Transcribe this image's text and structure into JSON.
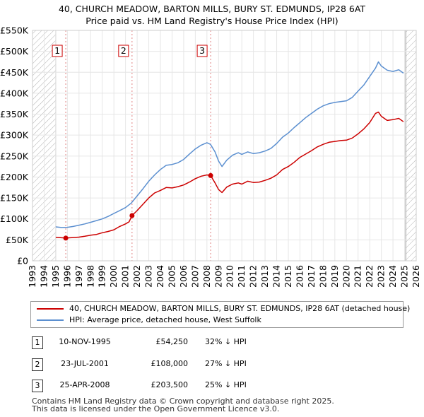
{
  "title_line1": "40, CHURCH MEADOW, BARTON MILLS, BURY ST. EDMUNDS, IP28 6AT",
  "title_line2": "Price paid vs. HM Land Registry's House Price Index (HPI)",
  "chart_data": {
    "type": "line",
    "title": "40, CHURCH MEADOW, BARTON MILLS, BURY ST. EDMUNDS, IP28 6AT — Price paid vs. HM Land Registry's House Price Index (HPI)",
    "xlim": [
      1993,
      2026
    ],
    "ylim": [
      0,
      550000
    ],
    "x_ticks": [
      1993,
      1994,
      1995,
      1996,
      1997,
      1998,
      1999,
      2000,
      2001,
      2002,
      2003,
      2004,
      2005,
      2006,
      2007,
      2008,
      2009,
      2010,
      2011,
      2012,
      2013,
      2014,
      2015,
      2016,
      2017,
      2018,
      2019,
      2020,
      2021,
      2022,
      2023,
      2024,
      2025,
      2026
    ],
    "y_ticks": [
      {
        "value": 0,
        "label": "£0"
      },
      {
        "value": 50000,
        "label": "£50K"
      },
      {
        "value": 100000,
        "label": "£100K"
      },
      {
        "value": 150000,
        "label": "£150K"
      },
      {
        "value": 200000,
        "label": "£200K"
      },
      {
        "value": 250000,
        "label": "£250K"
      },
      {
        "value": 300000,
        "label": "£300K"
      },
      {
        "value": 350000,
        "label": "£350K"
      },
      {
        "value": 400000,
        "label": "£400K"
      },
      {
        "value": 450000,
        "label": "£450K"
      },
      {
        "value": 500000,
        "label": "£500K"
      },
      {
        "value": 550000,
        "label": "£550K"
      }
    ],
    "grid": true,
    "hatched_ranges": [
      [
        1993,
        1995.0
      ],
      [
        2025.1,
        2026
      ]
    ],
    "colors": {
      "property": "#cc0000",
      "hpi": "#5b8fd0",
      "marker_line": "#e08080",
      "hatch": "#b0b0b0"
    },
    "series": [
      {
        "name": "40, CHURCH MEADOW, BARTON MILLS, BURY ST. EDMUNDS, IP28 6AT (detached house)",
        "color": "#cc0000",
        "points": [
          [
            1995.0,
            56000
          ],
          [
            1995.5,
            55000
          ],
          [
            1995.86,
            54250
          ],
          [
            1996.5,
            55500
          ],
          [
            1997,
            56500
          ],
          [
            1997.5,
            58500
          ],
          [
            1998,
            61000
          ],
          [
            1998.5,
            63000
          ],
          [
            1999,
            67000
          ],
          [
            1999.5,
            70000
          ],
          [
            2000,
            74000
          ],
          [
            2000.5,
            82000
          ],
          [
            2001,
            88000
          ],
          [
            2001.3,
            93000
          ],
          [
            2001.56,
            108000
          ],
          [
            2002,
            120000
          ],
          [
            2002.5,
            135000
          ],
          [
            2003,
            150000
          ],
          [
            2003.5,
            162000
          ],
          [
            2004,
            168000
          ],
          [
            2004.5,
            175000
          ],
          [
            2005,
            174000
          ],
          [
            2005.5,
            177000
          ],
          [
            2006,
            181000
          ],
          [
            2006.5,
            188000
          ],
          [
            2007,
            196000
          ],
          [
            2007.5,
            202000
          ],
          [
            2008.0,
            205000
          ],
          [
            2008.32,
            203500
          ],
          [
            2008.7,
            186000
          ],
          [
            2009.0,
            170000
          ],
          [
            2009.3,
            163000
          ],
          [
            2009.7,
            176000
          ],
          [
            2010.2,
            183000
          ],
          [
            2010.7,
            186000
          ],
          [
            2011,
            183000
          ],
          [
            2011.5,
            190000
          ],
          [
            2012,
            187000
          ],
          [
            2012.5,
            188000
          ],
          [
            2013,
            192000
          ],
          [
            2013.5,
            197000
          ],
          [
            2014,
            205000
          ],
          [
            2014.5,
            218000
          ],
          [
            2015,
            225000
          ],
          [
            2015.5,
            235000
          ],
          [
            2016,
            247000
          ],
          [
            2016.5,
            255000
          ],
          [
            2017,
            263000
          ],
          [
            2017.5,
            272000
          ],
          [
            2018,
            278000
          ],
          [
            2018.5,
            283000
          ],
          [
            2019,
            285000
          ],
          [
            2019.5,
            287000
          ],
          [
            2020,
            288000
          ],
          [
            2020.5,
            293000
          ],
          [
            2021,
            303000
          ],
          [
            2021.5,
            315000
          ],
          [
            2022,
            330000
          ],
          [
            2022.5,
            352000
          ],
          [
            2022.75,
            355000
          ],
          [
            2023,
            345000
          ],
          [
            2023.5,
            335000
          ],
          [
            2024,
            337000
          ],
          [
            2024.5,
            340000
          ],
          [
            2024.9,
            332000
          ]
        ]
      },
      {
        "name": "HPI: Average price, detached house, West Suffolk",
        "color": "#5b8fd0",
        "points": [
          [
            1995.0,
            81000
          ],
          [
            1995.5,
            79500
          ],
          [
            1996,
            80000
          ],
          [
            1996.5,
            82000
          ],
          [
            1997,
            85000
          ],
          [
            1997.5,
            88000
          ],
          [
            1998,
            92000
          ],
          [
            1998.5,
            96000
          ],
          [
            1999,
            100000
          ],
          [
            1999.5,
            106000
          ],
          [
            2000,
            113000
          ],
          [
            2000.5,
            120000
          ],
          [
            2001,
            127000
          ],
          [
            2001.5,
            138000
          ],
          [
            2002,
            155000
          ],
          [
            2002.5,
            172000
          ],
          [
            2003,
            190000
          ],
          [
            2003.5,
            205000
          ],
          [
            2004,
            218000
          ],
          [
            2004.5,
            228000
          ],
          [
            2005,
            230000
          ],
          [
            2005.5,
            234000
          ],
          [
            2006,
            242000
          ],
          [
            2006.5,
            255000
          ],
          [
            2007,
            267000
          ],
          [
            2007.5,
            276000
          ],
          [
            2008.0,
            282000
          ],
          [
            2008.3,
            278000
          ],
          [
            2008.7,
            260000
          ],
          [
            2009.0,
            238000
          ],
          [
            2009.3,
            225000
          ],
          [
            2009.7,
            240000
          ],
          [
            2010.2,
            252000
          ],
          [
            2010.7,
            258000
          ],
          [
            2011,
            254000
          ],
          [
            2011.5,
            260000
          ],
          [
            2012,
            256000
          ],
          [
            2012.5,
            258000
          ],
          [
            2013,
            262000
          ],
          [
            2013.5,
            268000
          ],
          [
            2014,
            280000
          ],
          [
            2014.5,
            295000
          ],
          [
            2015,
            305000
          ],
          [
            2015.5,
            318000
          ],
          [
            2016,
            330000
          ],
          [
            2016.5,
            342000
          ],
          [
            2017,
            352000
          ],
          [
            2017.5,
            362000
          ],
          [
            2018,
            370000
          ],
          [
            2018.5,
            375000
          ],
          [
            2019,
            378000
          ],
          [
            2019.5,
            380000
          ],
          [
            2020,
            382000
          ],
          [
            2020.5,
            390000
          ],
          [
            2021,
            405000
          ],
          [
            2021.5,
            420000
          ],
          [
            2022,
            440000
          ],
          [
            2022.5,
            460000
          ],
          [
            2022.75,
            475000
          ],
          [
            2023,
            465000
          ],
          [
            2023.5,
            455000
          ],
          [
            2024,
            452000
          ],
          [
            2024.5,
            456000
          ],
          [
            2024.9,
            448000
          ]
        ]
      }
    ],
    "sales": [
      {
        "num": "1",
        "x": 1995.86,
        "price": 54250
      },
      {
        "num": "2",
        "x": 2001.56,
        "price": 108000
      },
      {
        "num": "3",
        "x": 2008.32,
        "price": 203500
      }
    ]
  },
  "legend": [
    {
      "label": "40, CHURCH MEADOW, BARTON MILLS, BURY ST. EDMUNDS, IP28 6AT (detached house)",
      "color": "#cc0000"
    },
    {
      "label": "HPI: Average price, detached house, West Suffolk",
      "color": "#5b8fd0"
    }
  ],
  "sales_table": [
    {
      "num": "1",
      "date": "10-NOV-1995",
      "price": "£54,250",
      "hpi": "32% ↓ HPI"
    },
    {
      "num": "2",
      "date": "23-JUL-2001",
      "price": "£108,000",
      "hpi": "27% ↓ HPI"
    },
    {
      "num": "3",
      "date": "25-APR-2008",
      "price": "£203,500",
      "hpi": "25% ↓ HPI"
    }
  ],
  "footer_line1": "Contains HM Land Registry data © Crown copyright and database right 2025.",
  "footer_line2": "This data is licensed under the Open Government Licence v3.0."
}
